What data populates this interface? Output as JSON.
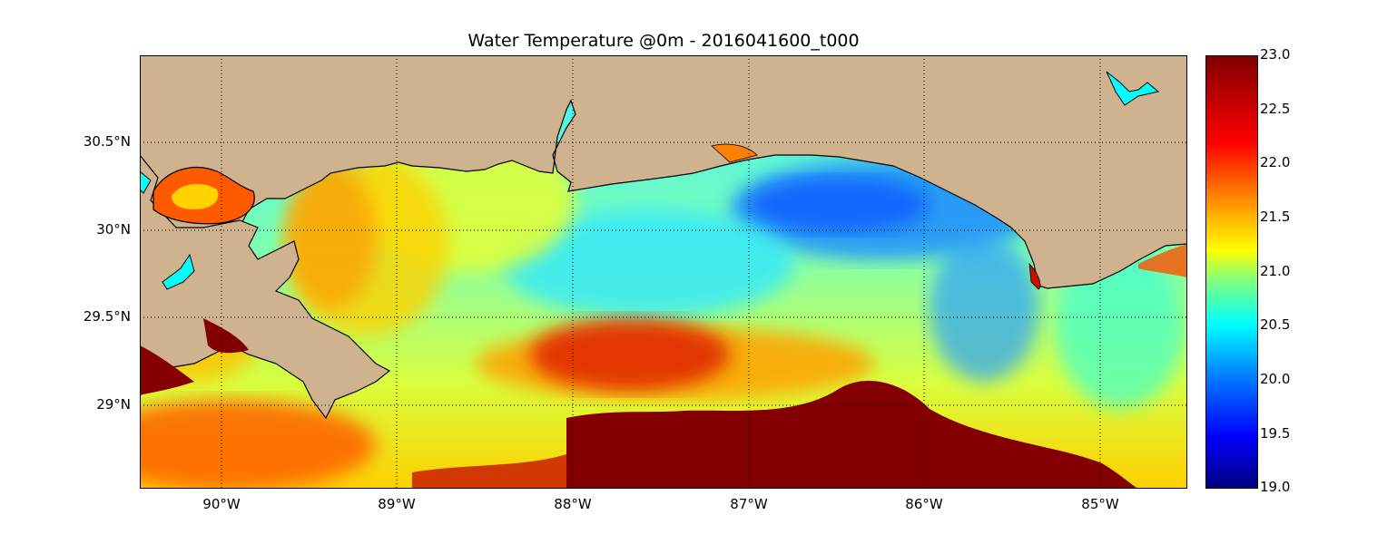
{
  "title": "Water Temperature @0m - 2016041600_t000",
  "lat_labels": [
    "30.5°N",
    "30°N",
    "29.5°N",
    "29°N"
  ],
  "lon_labels": [
    "90°W",
    "89°W",
    "88°W",
    "87°W",
    "86°W",
    "85°W"
  ],
  "colorbar": {
    "min": 19.0,
    "max": 23.0,
    "ticks": [
      "23.0",
      "22.5",
      "22.0",
      "21.5",
      "21.0",
      "20.5",
      "20.0",
      "19.5",
      "19.0"
    ],
    "colormap": "jet"
  },
  "colors": {
    "land": "#cfb38f",
    "lakes": "#00ffff",
    "coastline": "#000000"
  }
}
